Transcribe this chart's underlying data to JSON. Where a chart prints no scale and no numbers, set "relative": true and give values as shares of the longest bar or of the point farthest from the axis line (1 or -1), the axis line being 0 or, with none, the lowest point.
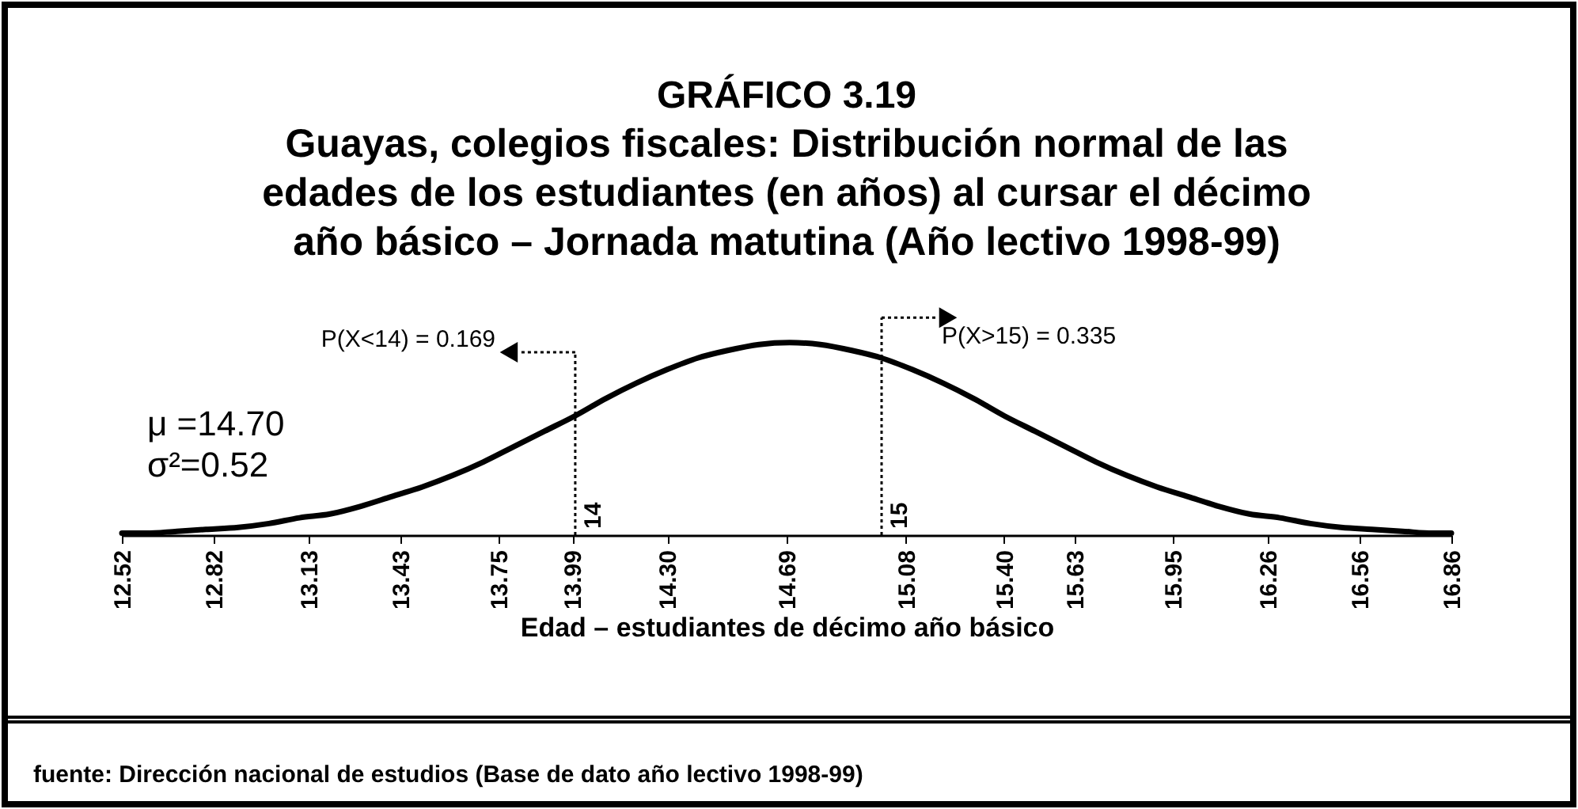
{
  "chart_data": {
    "type": "line",
    "title": "GRÁFICO 3.19",
    "subtitle": "Guayas, colegios fiscales: Distribución normal de las edades de los estudiantes (en años) al cursar el décimo año básico – Jornada matutina (Año lectivo 1998-99)",
    "xlabel": "Edad – estudiantes de décimo año básico",
    "annotations": [
      "P(X<14) = 0.169",
      "P(X>15) = 0.335",
      "μ =14.70",
      "σ²=0.52",
      "fuente: Dirección nacional de estudios (Base de dato año lectivo 1998-99)"
    ],
    "relative": true,
    "color": "#000000",
    "line_style": "solid",
    "x": [
      12.52,
      12.6,
      12.7,
      12.8,
      12.9,
      13.0,
      13.1,
      13.2,
      13.3,
      13.4,
      13.5,
      13.6,
      13.7,
      13.8,
      13.9,
      14.0,
      14.1,
      14.2,
      14.3,
      14.4,
      14.5,
      14.6,
      14.7,
      14.8,
      14.9,
      15.0,
      15.1,
      15.2,
      15.3,
      15.4,
      15.5,
      15.6,
      15.7,
      15.8,
      15.9,
      16.0,
      16.1,
      16.2,
      16.3,
      16.4,
      16.5,
      16.6,
      16.7,
      16.8,
      16.86
    ],
    "values": [
      0.01,
      0.01,
      0.02,
      0.03,
      0.04,
      0.06,
      0.09,
      0.11,
      0.15,
      0.2,
      0.25,
      0.31,
      0.38,
      0.46,
      0.54,
      0.62,
      0.71,
      0.79,
      0.86,
      0.92,
      0.96,
      0.99,
      1,
      0.99,
      0.96,
      0.92,
      0.86,
      0.79,
      0.71,
      0.62,
      0.54,
      0.46,
      0.38,
      0.31,
      0.25,
      0.2,
      0.15,
      0.11,
      0.09,
      0.06,
      0.04,
      0.03,
      0.02,
      0.01,
      0.01
    ],
    "xlim": [
      12.52,
      16.86
    ],
    "xticks": [
      12.52,
      12.82,
      13.13,
      13.43,
      13.75,
      13.99,
      {
        "value": 14.3,
        "label": "14.30"
      },
      14.69,
      15.08,
      {
        "value": 15.4,
        "label": "15.40"
      },
      15.63,
      15.95,
      16.26,
      16.56,
      16.86
    ],
    "ref_lines": [
      {
        "axis": "x",
        "value": 14,
        "label": "14",
        "line_style": "dotted",
        "color": "#000000"
      },
      {
        "axis": "x",
        "value": 15,
        "label": "15",
        "line_style": "dotted",
        "color": "#000000"
      }
    ]
  }
}
